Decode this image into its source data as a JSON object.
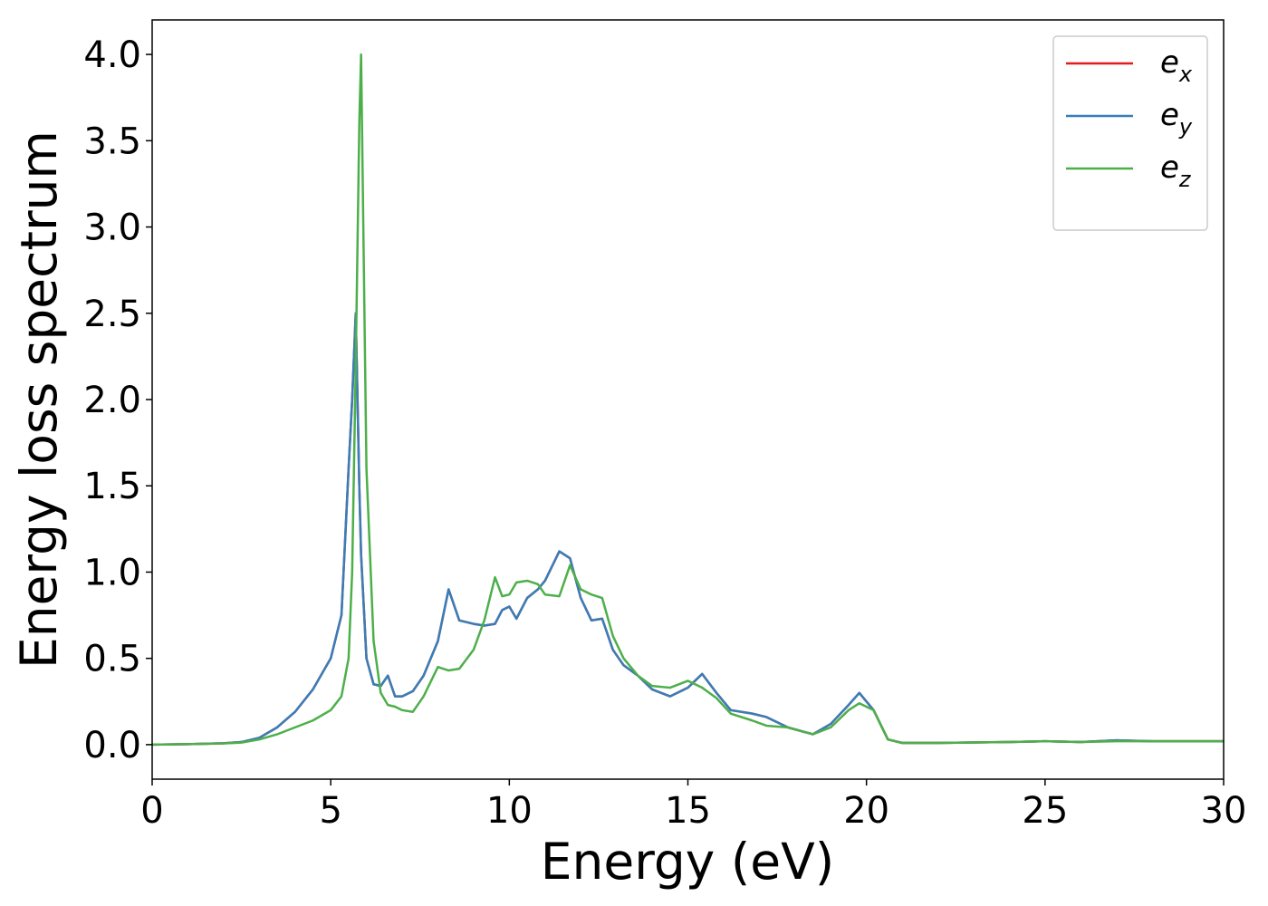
{
  "chart_data": {
    "type": "line",
    "xlabel": "Energy (eV)",
    "ylabel": "Energy loss spectrum",
    "x": [
      0,
      1,
      2,
      2.5,
      3,
      3.5,
      4,
      4.5,
      5,
      5.3,
      5.5,
      5.6,
      5.7,
      5.8,
      5.85,
      6.0,
      6.2,
      6.4,
      6.6,
      6.8,
      7.0,
      7.3,
      7.6,
      8.0,
      8.3,
      8.6,
      9.0,
      9.3,
      9.6,
      9.8,
      10.0,
      10.2,
      10.5,
      10.8,
      11.0,
      11.4,
      11.7,
      12.0,
      12.3,
      12.6,
      12.9,
      13.2,
      13.6,
      14.0,
      14.5,
      15.0,
      15.4,
      15.8,
      16.2,
      16.8,
      17.2,
      17.8,
      18.5,
      19.0,
      19.5,
      19.8,
      20.2,
      20.6,
      21,
      22,
      24,
      25,
      26,
      27,
      28,
      30
    ],
    "series": [
      {
        "name": "e_x",
        "color": "#e41a1c",
        "values": [
          0,
          0.003,
          0.008,
          0.015,
          0.04,
          0.1,
          0.19,
          0.32,
          0.5,
          0.75,
          1.6,
          2.0,
          2.5,
          1.5,
          1.1,
          0.5,
          0.35,
          0.34,
          0.4,
          0.28,
          0.28,
          0.31,
          0.4,
          0.6,
          0.9,
          0.72,
          0.7,
          0.69,
          0.7,
          0.78,
          0.8,
          0.73,
          0.85,
          0.9,
          0.95,
          1.12,
          1.08,
          0.85,
          0.72,
          0.73,
          0.55,
          0.46,
          0.4,
          0.32,
          0.28,
          0.33,
          0.41,
          0.3,
          0.2,
          0.18,
          0.16,
          0.1,
          0.06,
          0.12,
          0.23,
          0.3,
          0.2,
          0.03,
          0.01,
          0.01,
          0.015,
          0.02,
          0.015,
          0.025,
          0.02,
          0.02
        ]
      },
      {
        "name": "e_y",
        "color": "#377eb8",
        "values": [
          0,
          0.003,
          0.008,
          0.015,
          0.04,
          0.1,
          0.19,
          0.32,
          0.5,
          0.75,
          1.6,
          2.0,
          2.5,
          1.5,
          1.1,
          0.5,
          0.35,
          0.34,
          0.4,
          0.28,
          0.28,
          0.31,
          0.4,
          0.6,
          0.9,
          0.72,
          0.7,
          0.69,
          0.7,
          0.78,
          0.8,
          0.73,
          0.85,
          0.9,
          0.95,
          1.12,
          1.08,
          0.85,
          0.72,
          0.73,
          0.55,
          0.46,
          0.4,
          0.32,
          0.28,
          0.33,
          0.41,
          0.3,
          0.2,
          0.18,
          0.16,
          0.1,
          0.06,
          0.12,
          0.23,
          0.3,
          0.2,
          0.03,
          0.01,
          0.01,
          0.015,
          0.02,
          0.015,
          0.025,
          0.02,
          0.02
        ]
      },
      {
        "name": "e_z",
        "color": "#4daf4a",
        "values": [
          0,
          0.003,
          0.007,
          0.012,
          0.03,
          0.06,
          0.1,
          0.14,
          0.2,
          0.28,
          0.5,
          1.0,
          2.2,
          3.6,
          4.0,
          1.6,
          0.6,
          0.3,
          0.23,
          0.22,
          0.2,
          0.19,
          0.28,
          0.45,
          0.43,
          0.44,
          0.55,
          0.72,
          0.97,
          0.86,
          0.87,
          0.94,
          0.95,
          0.93,
          0.87,
          0.86,
          1.04,
          0.9,
          0.87,
          0.85,
          0.63,
          0.5,
          0.4,
          0.34,
          0.33,
          0.37,
          0.33,
          0.27,
          0.18,
          0.14,
          0.11,
          0.1,
          0.06,
          0.1,
          0.2,
          0.24,
          0.2,
          0.03,
          0.01,
          0.01,
          0.015,
          0.02,
          0.015,
          0.02,
          0.02,
          0.02
        ]
      }
    ],
    "xlim": [
      0,
      30
    ],
    "ylim": [
      -0.2,
      4.2
    ],
    "xticks": [
      0,
      5,
      10,
      15,
      20,
      25,
      30
    ],
    "yticks": [
      {
        "value": 0,
        "label": "0.0"
      },
      {
        "value": 0.5,
        "label": "0.5"
      },
      {
        "value": 1,
        "label": "1.0"
      },
      {
        "value": 1.5,
        "label": "1.5"
      },
      {
        "value": 2,
        "label": "2.0"
      },
      {
        "value": 2.5,
        "label": "2.5"
      },
      {
        "value": 3,
        "label": "3.0"
      },
      {
        "value": 3.5,
        "label": "3.5"
      },
      {
        "value": 4,
        "label": "4.0"
      }
    ],
    "legend": "upper right",
    "grid": false
  }
}
